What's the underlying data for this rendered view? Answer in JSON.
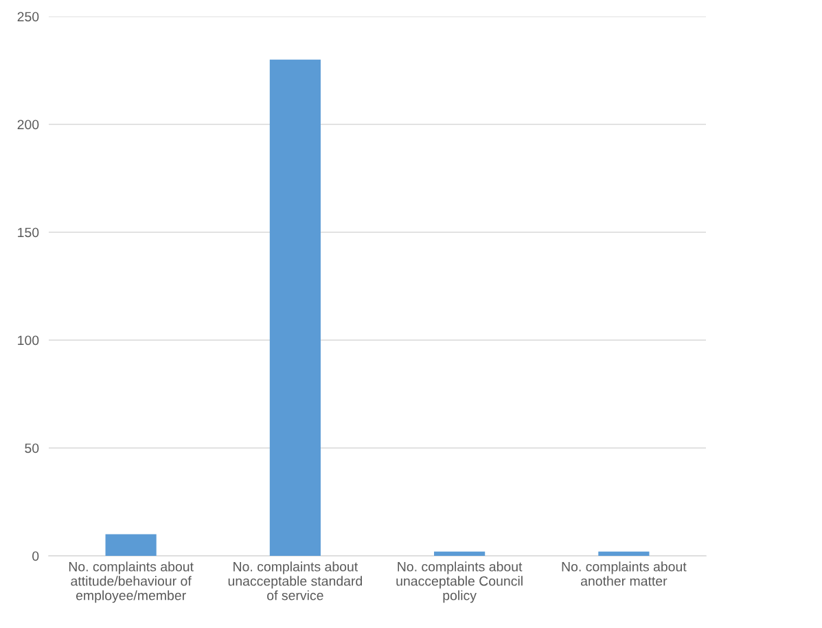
{
  "chart_data": {
    "type": "bar",
    "categories": [
      "No. complaints about\nattitude/behaviour of\nemployee/member",
      "No. complaints about\nunacceptable standard\nof service",
      "No. complaints about\nunacceptable Council\npolicy",
      "No. complaints about\nanother matter"
    ],
    "values": [
      10,
      230,
      2,
      2
    ],
    "color": "#5b9bd5",
    "ylim": [
      0,
      250
    ],
    "yticks": [
      0,
      50,
      100,
      150,
      200,
      250
    ],
    "grid": "y",
    "legend": false
  }
}
